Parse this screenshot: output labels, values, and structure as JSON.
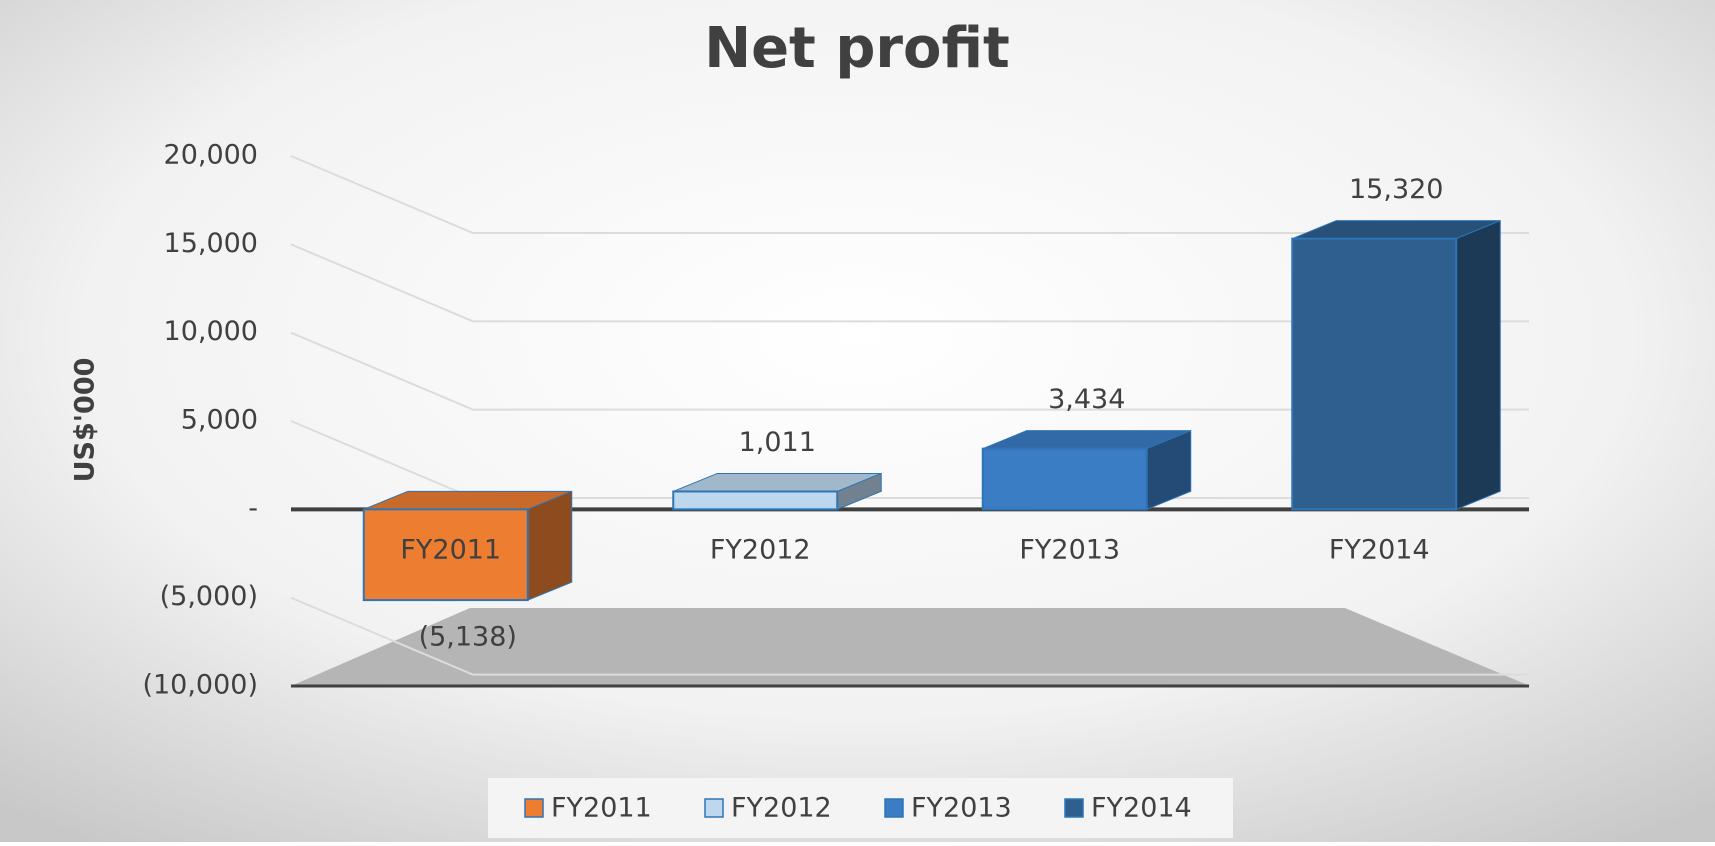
{
  "chart_data": {
    "type": "bar3d",
    "title": "Net profit",
    "y_axis_label": "US$'000",
    "categories": [
      "FY2011",
      "FY2012",
      "FY2013",
      "FY2014"
    ],
    "values": [
      -5138,
      1011,
      3434,
      15320
    ],
    "value_labels": [
      "(5,138)",
      "1,011",
      "3,434",
      "15,320"
    ],
    "colors": [
      "#ed7d31",
      "#bdd7ee",
      "#3a7dc4",
      "#2f5f8f"
    ],
    "ylim": [
      -10000,
      20000
    ],
    "yticks": [
      {
        "value": -10000,
        "label": "(10,000)"
      },
      {
        "value": -5000,
        "label": "(5,000)"
      },
      {
        "value": 0,
        "label": "-"
      },
      {
        "value": 5000,
        "label": "5,000"
      },
      {
        "value": 10000,
        "label": "10,000"
      },
      {
        "value": 15000,
        "label": "15,000"
      },
      {
        "value": 20000,
        "label": "20,000"
      }
    ],
    "grid": true,
    "legend": "bottom"
  }
}
